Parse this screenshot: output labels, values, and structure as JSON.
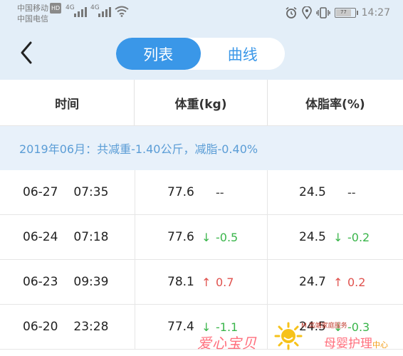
{
  "status_bar": {
    "carrier1": "中国移动",
    "carrier1_badge": "HD",
    "carrier2": "中国电信",
    "network1": "4G",
    "network2": "4G",
    "battery_label": "77",
    "battery_level": 0.77,
    "time": "14:27",
    "icons": [
      "alarm-icon",
      "location-icon",
      "vibrate-icon",
      "battery-icon",
      "wifi-icon",
      "signal-icon"
    ]
  },
  "nav": {
    "tabs": [
      {
        "label": "列表",
        "active": true
      },
      {
        "label": "曲线",
        "active": false
      }
    ],
    "accent_color": "#3a97e8"
  },
  "table": {
    "headers": [
      "时间",
      "体重(kg)",
      "体脂率(%)"
    ],
    "summary": "2019年06月：共减重-1.40公斤，减脂-0.40%",
    "rows": [
      {
        "date": "06-27",
        "time": "07:35",
        "weight": "77.6",
        "weight_delta": "--",
        "weight_dir": "none",
        "fat": "24.5",
        "fat_delta": "--",
        "fat_dir": "none"
      },
      {
        "date": "06-24",
        "time": "07:18",
        "weight": "77.6",
        "weight_delta": "-0.5",
        "weight_dir": "down",
        "fat": "24.5",
        "fat_delta": "-0.2",
        "fat_dir": "down"
      },
      {
        "date": "06-23",
        "time": "09:39",
        "weight": "78.1",
        "weight_delta": "0.7",
        "weight_dir": "up",
        "fat": "24.7",
        "fat_delta": "0.2",
        "fat_dir": "up"
      },
      {
        "date": "06-20",
        "time": "23:28",
        "weight": "77.4",
        "weight_delta": "-1.1",
        "weight_dir": "down",
        "fat": "24.5",
        "fat_delta": "-0.3",
        "fat_dir": "down"
      }
    ],
    "colors": {
      "down": "#39b54a",
      "up": "#e0524e"
    }
  },
  "watermark": {
    "left_text": "爱心宝贝",
    "small_text": "M 高端家庭服务",
    "right_text": "母婴护理",
    "right_sub": "中心"
  }
}
